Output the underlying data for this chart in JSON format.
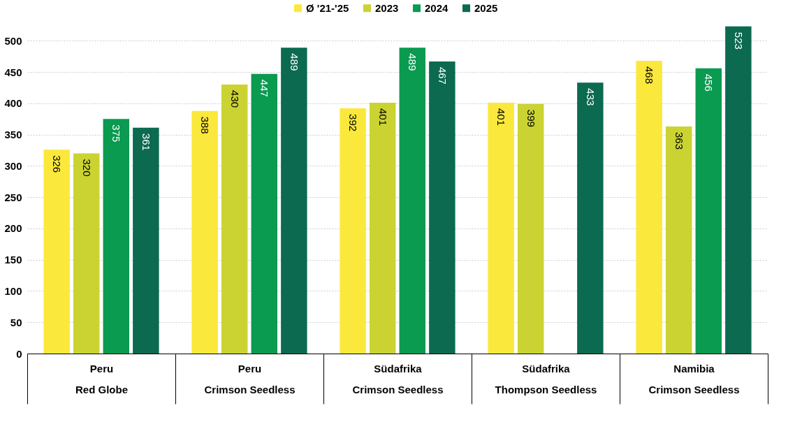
{
  "chart_data": {
    "type": "bar",
    "categories": [
      "Peru\nRed Globe",
      "Peru\nCrimson Seedless",
      "Südafrika\nCrimson Seedless",
      "Südafrika\nThompson Seedless",
      "Namibia\nCrimson Seedless"
    ],
    "series": [
      {
        "name": "Ø '21-'25",
        "color": "#fbe83c",
        "values": [
          326,
          388,
          392,
          401,
          468
        ]
      },
      {
        "name": "2023",
        "color": "#cbd332",
        "values": [
          320,
          430,
          401,
          399,
          363
        ]
      },
      {
        "name": "2024",
        "color": "#0a9a50",
        "values": [
          375,
          447,
          489,
          null,
          456
        ]
      },
      {
        "name": "2025",
        "color": "#0b6a50",
        "values": [
          361,
          489,
          467,
          433,
          523
        ]
      }
    ],
    "ylim": [
      0,
      525
    ],
    "yticks": [
      0,
      50,
      100,
      150,
      200,
      250,
      300,
      350,
      400,
      450,
      500
    ],
    "grid": "y",
    "legend": "top",
    "data_labels": true
  }
}
